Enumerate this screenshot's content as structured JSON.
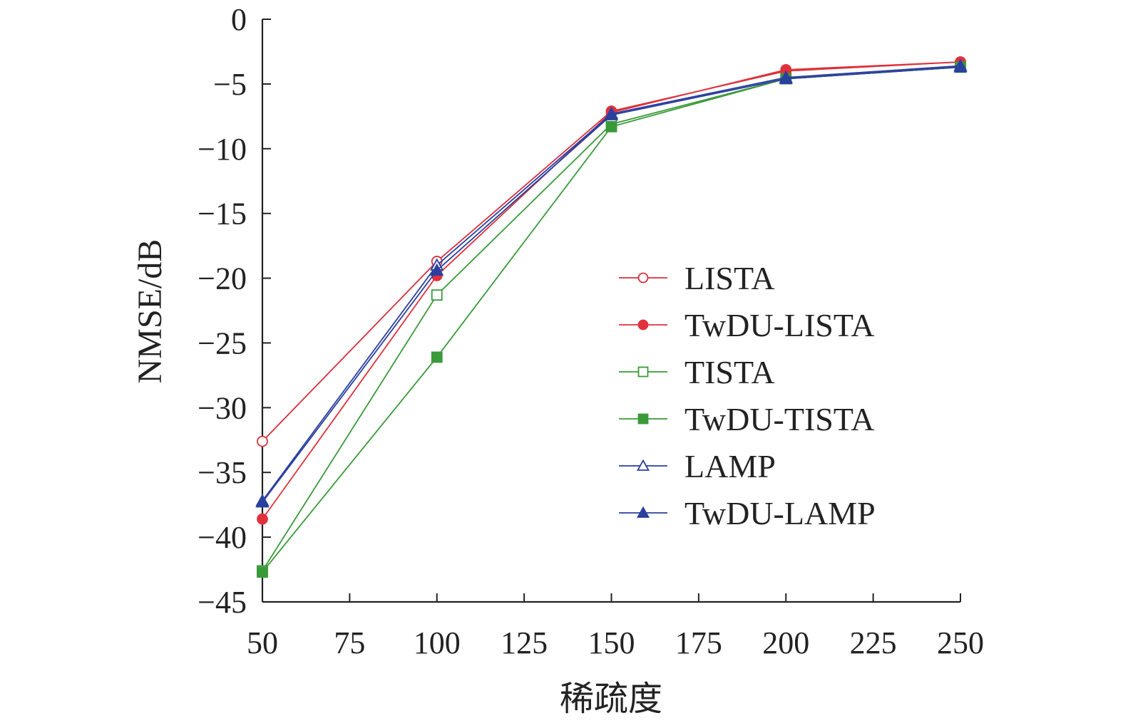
{
  "chart_data": {
    "type": "line",
    "title": "",
    "xlabel": "稀疏度",
    "ylabel": "NMSE/dB",
    "xlim": [
      50,
      250
    ],
    "ylim": [
      -45,
      0
    ],
    "xticks": [
      50,
      75,
      100,
      125,
      150,
      175,
      200,
      225,
      250
    ],
    "yticks": [
      0,
      -5,
      -10,
      -15,
      -20,
      -25,
      -30,
      -35,
      -40,
      -45
    ],
    "xtick_labels": [
      "50",
      "75",
      "100",
      "125",
      "150",
      "175",
      "200",
      "225",
      "250"
    ],
    "ytick_labels": [
      "0",
      "−5",
      "−10",
      "−15",
      "−20",
      "−25",
      "−30",
      "−35",
      "−40",
      "−45"
    ],
    "grid": false,
    "legend_position": "right-center",
    "x": [
      50,
      100,
      150,
      200,
      250
    ],
    "series": [
      {
        "name": "LISTA",
        "values": [
          -32.6,
          -18.7,
          -7.1,
          -4.0,
          -3.3
        ],
        "color": "#d6313c",
        "marker": "circle",
        "filled": false
      },
      {
        "name": "TwDU-LISTA",
        "values": [
          -38.6,
          -19.8,
          -7.2,
          -3.9,
          -3.3
        ],
        "color": "#e0313c",
        "marker": "circle",
        "filled": true
      },
      {
        "name": "TISTA",
        "values": [
          -42.6,
          -21.3,
          -8.1,
          -4.6,
          -3.7
        ],
        "color": "#3a9a3a",
        "marker": "square",
        "filled": false
      },
      {
        "name": "TwDU-TISTA",
        "values": [
          -42.7,
          -26.1,
          -8.3,
          -4.6,
          -3.7
        ],
        "color": "#3a9a3a",
        "marker": "square",
        "filled": true
      },
      {
        "name": "LAMP",
        "values": [
          -37.2,
          -19.0,
          -7.3,
          -4.5,
          -3.6
        ],
        "color": "#2b3f9e",
        "marker": "triangle",
        "filled": false
      },
      {
        "name": "TwDU-LAMP",
        "values": [
          -37.3,
          -19.4,
          -7.4,
          -4.6,
          -3.7
        ],
        "color": "#2b3f9e",
        "marker": "triangle",
        "filled": true
      }
    ]
  }
}
